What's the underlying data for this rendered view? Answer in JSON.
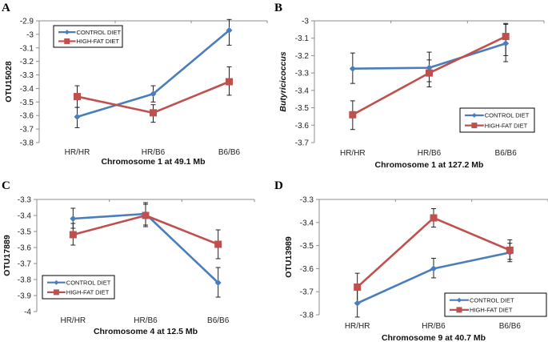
{
  "colors": {
    "control": "#4a7ebb",
    "highfat": "#c0504d",
    "axis": "#8c8c8c",
    "errorbar": "#222222"
  },
  "chart_data": [
    {
      "type": "line",
      "panel": "A",
      "categories": [
        "HR/HR",
        "HR/B6",
        "B6/B6"
      ],
      "xlabel": "Chromosome 1 at 49.1 Mb",
      "ylabel": "OTU15028",
      "ylabel_italic": false,
      "ylim": [
        -3.8,
        -2.9
      ],
      "yticks": [
        -2.9,
        -3,
        -3.1,
        -3.2,
        -3.3,
        -3.4,
        -3.5,
        -3.6,
        -3.7,
        -3.8
      ],
      "ytick_labels": [
        "-2.9",
        "-3",
        "-3.1",
        "-3.2",
        "-3.3",
        "-3.4",
        "-3.5",
        "-3.6",
        "-3.7",
        "-3.8"
      ],
      "legend_position": "top-left",
      "series": [
        {
          "name": "CONTROL DIET",
          "marker": "diamond",
          "values": [
            -3.61,
            -3.44,
            -2.97
          ],
          "err_low": [
            -3.69,
            -3.5,
            -3.08
          ],
          "err_high": [
            -3.54,
            -3.38,
            -2.89
          ]
        },
        {
          "name": "HIGH-FAT DIET",
          "marker": "square",
          "values": [
            -3.46,
            -3.58,
            -3.35
          ],
          "err_low": [
            -3.54,
            -3.65,
            -3.45
          ],
          "err_high": [
            -3.38,
            -3.52,
            -3.24
          ]
        }
      ]
    },
    {
      "type": "line",
      "panel": "B",
      "categories": [
        "HR/HR",
        "HR/B6",
        "B6/B6"
      ],
      "xlabel": "Chromosome 1 at 127.2 Mb",
      "ylabel": "Butyricicoccus",
      "ylabel_italic": true,
      "ylim": [
        -3.7,
        -3.0
      ],
      "yticks": [
        -3,
        -3.1,
        -3.2,
        -3.3,
        -3.4,
        -3.5,
        -3.6,
        -3.7
      ],
      "ytick_labels": [
        "-3",
        "-3.1",
        "-3.2",
        "-3.3",
        "-3.4",
        "-3.5",
        "-3.6",
        "-3.7"
      ],
      "legend_position": "bottom-right",
      "series": [
        {
          "name": "CONTROL DIET",
          "marker": "diamond",
          "values": [
            -3.275,
            -3.27,
            -3.13
          ],
          "err_low": [
            -3.36,
            -3.35,
            -3.235
          ],
          "err_high": [
            -3.185,
            -3.225,
            -3.02
          ]
        },
        {
          "name": "HIGH-FAT DIET",
          "marker": "square",
          "values": [
            -3.54,
            -3.3,
            -3.09
          ],
          "err_low": [
            -3.625,
            -3.38,
            -3.2
          ],
          "err_high": [
            -3.46,
            -3.18,
            -3.015
          ]
        }
      ]
    },
    {
      "type": "line",
      "panel": "C",
      "categories": [
        "HR/HR",
        "HR/B6",
        "B6/B6"
      ],
      "xlabel": "Chromosome 4 at 12.5 Mb",
      "ylabel": "OTU17889",
      "ylabel_italic": false,
      "ylim": [
        -4.0,
        -3.3
      ],
      "yticks": [
        -3.3,
        -3.4,
        -3.5,
        -3.6,
        -3.7,
        -3.8,
        -3.9,
        -4
      ],
      "ytick_labels": [
        "-3.3",
        "-3.4",
        "-3.5",
        "-3.6",
        "-3.7",
        "-3.8",
        "-3.9",
        "-4"
      ],
      "legend_position": "bottom-left",
      "series": [
        {
          "name": "CONTROL DIET",
          "marker": "diamond",
          "values": [
            -3.42,
            -3.39,
            -3.82
          ],
          "err_low": [
            -3.48,
            -3.46,
            -3.91
          ],
          "err_high": [
            -3.355,
            -3.32,
            -3.725
          ]
        },
        {
          "name": "HIGH-FAT DIET",
          "marker": "square",
          "values": [
            -3.52,
            -3.4,
            -3.58
          ],
          "err_low": [
            -3.585,
            -3.47,
            -3.67
          ],
          "err_high": [
            -3.45,
            -3.33,
            -3.49
          ]
        }
      ]
    },
    {
      "type": "line",
      "panel": "D",
      "categories": [
        "HR/HR",
        "HR/B6",
        "B6/B6"
      ],
      "xlabel": "Chromosome 9 at 40.7 Mb",
      "ylabel": "OTU13989",
      "ylabel_italic": false,
      "ylim": [
        -3.8,
        -3.3
      ],
      "yticks": [
        -3.3,
        -3.4,
        -3.5,
        -3.6,
        -3.7,
        -3.8
      ],
      "ytick_labels": [
        "-3.3",
        "-3.4",
        "-3.5",
        "-3.6",
        "-3.7",
        "-3.8"
      ],
      "legend_position": "bottom-right",
      "series": [
        {
          "name": "CONTROL DIET",
          "marker": "diamond",
          "values": [
            -3.75,
            -3.6,
            -3.53
          ],
          "err_low": [
            -3.81,
            -3.64,
            -3.57
          ],
          "err_high": [
            -3.69,
            -3.555,
            -3.49
          ]
        },
        {
          "name": "HIGH-FAT DIET",
          "marker": "square",
          "values": [
            -3.68,
            -3.38,
            -3.52
          ],
          "err_low": [
            -3.75,
            -3.42,
            -3.56
          ],
          "err_high": [
            -3.62,
            -3.34,
            -3.475
          ]
        }
      ]
    }
  ]
}
